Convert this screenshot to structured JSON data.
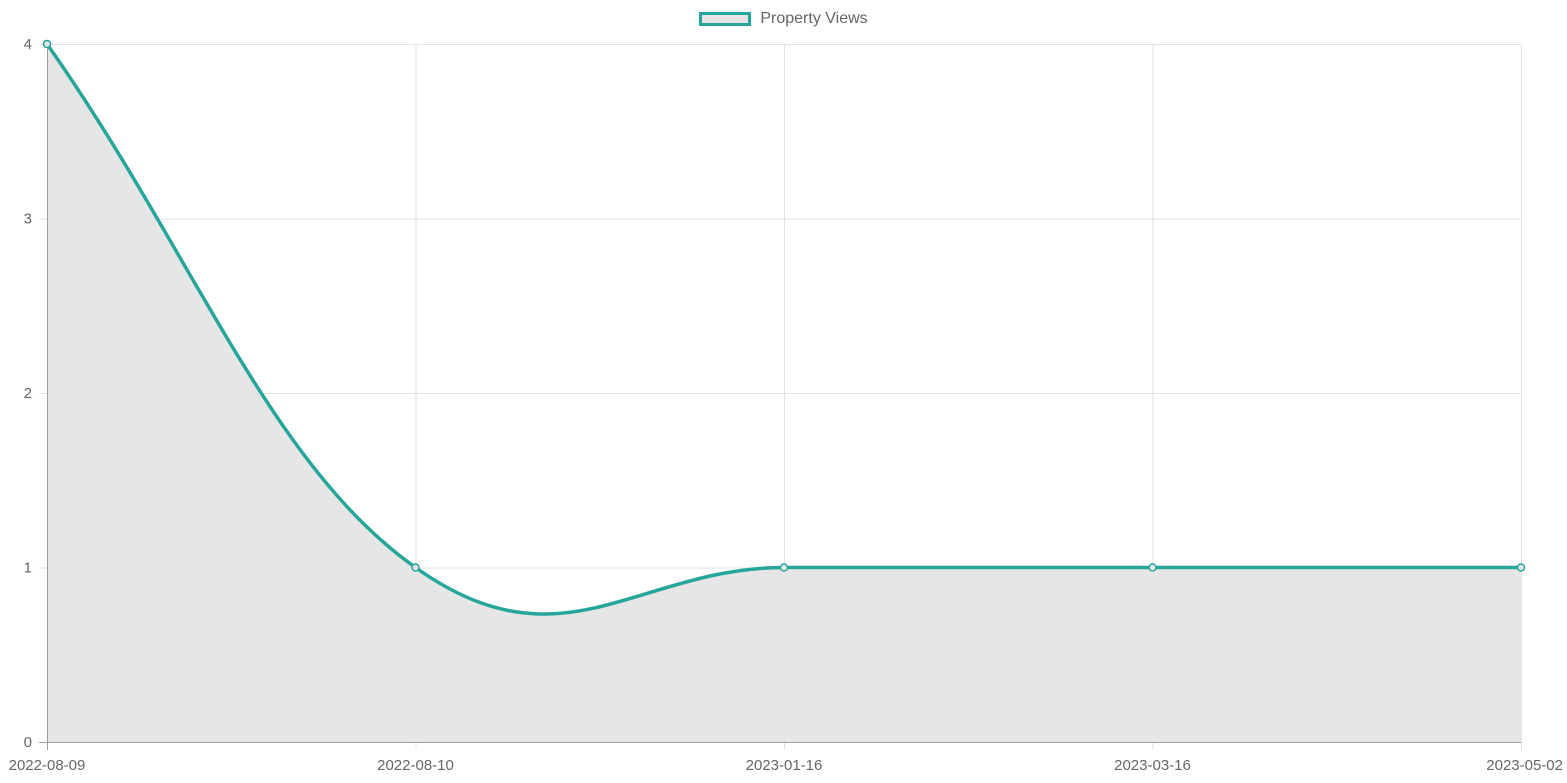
{
  "colors": {
    "line": "#26a69a",
    "fill": "#e5e5e5",
    "grid": "#e2e2e2",
    "axis": "#9e9e9e",
    "text": "#666666"
  },
  "chart_data": {
    "type": "line",
    "title": "",
    "xlabel": "",
    "ylabel": "",
    "categories": [
      "2022-08-09",
      "2022-08-10",
      "2023-01-16",
      "2023-03-16",
      "2023-05-02"
    ],
    "series": [
      {
        "name": "Property Views",
        "values": [
          4,
          1,
          1,
          1,
          1
        ],
        "filled": true,
        "smooth": true
      }
    ],
    "ylim": [
      0,
      4
    ],
    "yticks": [
      0,
      1,
      2,
      3,
      4
    ],
    "grid": true,
    "legend_position": "top-center"
  }
}
